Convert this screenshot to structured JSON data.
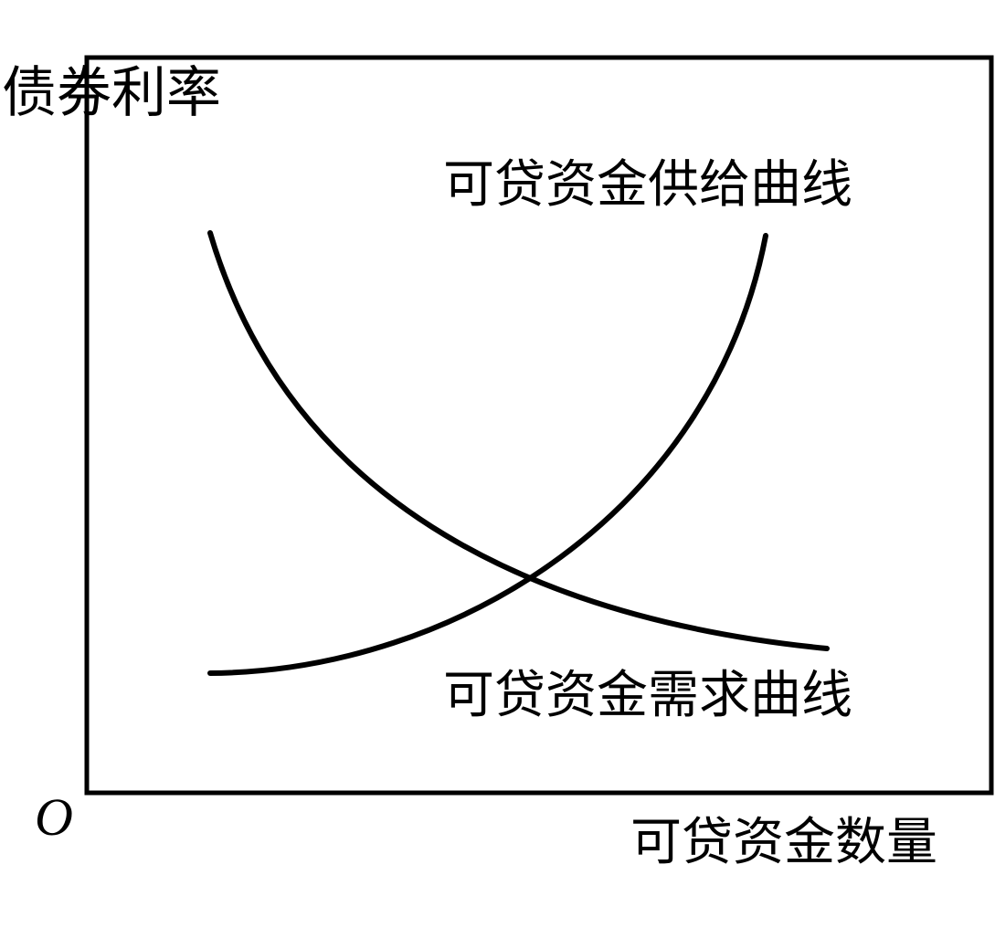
{
  "diagram": {
    "y_axis_label": "债券利率",
    "x_axis_label": "可贷资金数量",
    "origin_label": "O",
    "supply_curve_label": "可贷资金供给曲线",
    "demand_curve_label": "可贷资金需求曲线",
    "line_color": "#000000"
  }
}
